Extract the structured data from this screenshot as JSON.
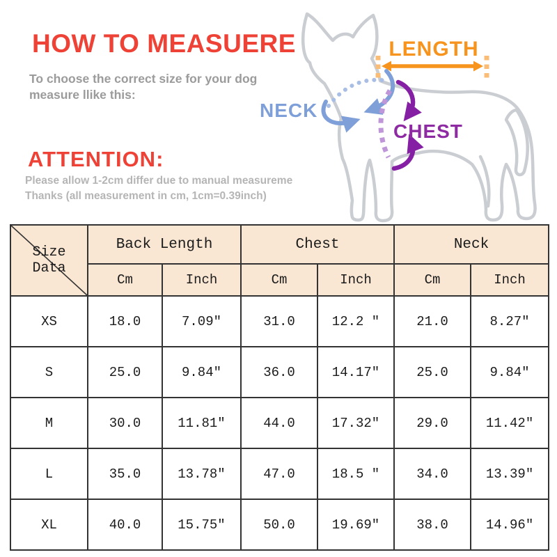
{
  "header": {
    "title": "HOW TO MEASUERE",
    "title_color": "#ef4237",
    "subtitle_line1": "To choose the correct size for your dog",
    "subtitle_line2": "measure llike this:",
    "subtitle_color": "#9b9b9b"
  },
  "attention": {
    "heading": "ATTENTION:",
    "heading_color": "#ef4237",
    "line1": "Please allow 1-2cm differ due to manual measureme",
    "line2": "Thanks (all measurement in cm, 1cm=0.39inch)",
    "text_color": "#b5b5b5"
  },
  "diagram": {
    "dog_outline_color": "#cacdd1",
    "labels": {
      "length": {
        "text": "LENGTH",
        "color": "#f7941d"
      },
      "neck": {
        "text": "NECK",
        "color": "#7e9fd8"
      },
      "chest": {
        "text": "CHEST",
        "color": "#8e2ba2"
      }
    }
  },
  "size_table": {
    "corner_label": "Size Data",
    "header_bg": "#fae7d3",
    "groups": [
      {
        "label": "Back Length",
        "units": [
          "Cm",
          "Inch"
        ]
      },
      {
        "label": "Chest",
        "units": [
          "Cm",
          "Inch"
        ]
      },
      {
        "label": "Neck",
        "units": [
          "Cm",
          "Inch"
        ]
      }
    ],
    "rows": [
      {
        "size": "XS",
        "values": [
          "18.0",
          "7.09″",
          "31.0",
          "12.2 ″",
          "21.0",
          "8.27″"
        ]
      },
      {
        "size": "S",
        "values": [
          "25.0",
          "9.84″",
          "36.0",
          "14.17″",
          "25.0",
          "9.84″"
        ]
      },
      {
        "size": "M",
        "values": [
          "30.0",
          "11.81″",
          "44.0",
          "17.32″",
          "29.0",
          "11.42″"
        ]
      },
      {
        "size": "L",
        "values": [
          "35.0",
          "13.78″",
          "47.0",
          "18.5 ″",
          "34.0",
          "13.39″"
        ]
      },
      {
        "size": "XL",
        "values": [
          "40.0",
          "15.75″",
          "50.0",
          "19.69″",
          "38.0",
          "14.96″"
        ]
      }
    ]
  }
}
